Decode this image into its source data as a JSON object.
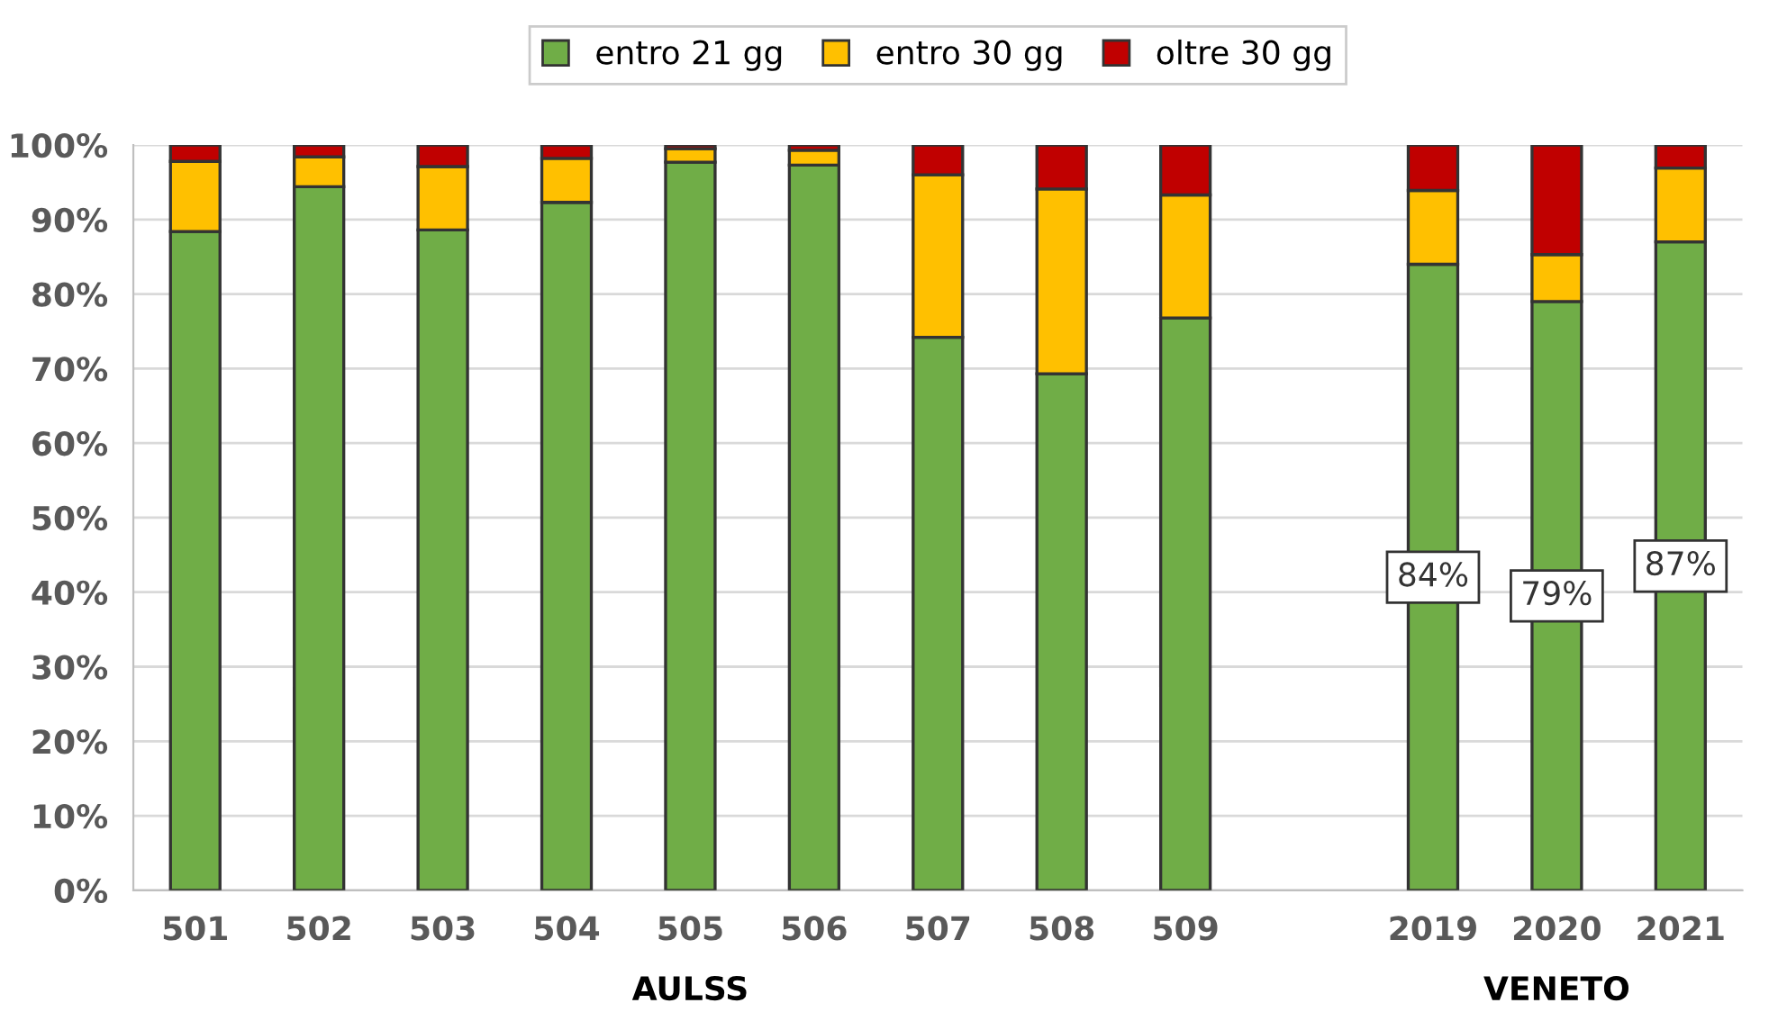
{
  "chart_data": {
    "type": "bar",
    "stacked": true,
    "categories": [
      "501",
      "502",
      "503",
      "504",
      "505",
      "506",
      "507",
      "508",
      "509",
      null,
      "2019",
      "2020",
      "2021"
    ],
    "series": [
      {
        "name": "entro 21 gg",
        "color": "#70ad47",
        "values": [
          88.4,
          94.4,
          88.6,
          92.3,
          97.7,
          97.3,
          74.2,
          69.3,
          76.8,
          null,
          84,
          79,
          87
        ],
        "value_labels": [
          null,
          null,
          null,
          null,
          null,
          null,
          null,
          null,
          null,
          null,
          "84%",
          "79%",
          "87%"
        ]
      },
      {
        "name": "entro 30 gg",
        "color": "#ffc000",
        "values": [
          9.4,
          4.0,
          8.5,
          5.9,
          1.8,
          2.0,
          21.8,
          24.8,
          16.5,
          null,
          9.9,
          6.3,
          9.9
        ]
      },
      {
        "name": "oltre 30 gg",
        "color": "#c00000",
        "values": [
          2.2,
          1.6,
          2.9,
          1.8,
          0.5,
          0.7,
          4.0,
          5.9,
          6.7,
          null,
          6.1,
          14.7,
          3.1
        ]
      }
    ],
    "ylim": [
      0,
      100
    ],
    "yticks": [
      {
        "value": 0,
        "label": "0%"
      },
      {
        "value": 10,
        "label": "10%"
      },
      {
        "value": 20,
        "label": "20%"
      },
      {
        "value": 30,
        "label": "30%"
      },
      {
        "value": 40,
        "label": "40%"
      },
      {
        "value": 50,
        "label": "50%"
      },
      {
        "value": 60,
        "label": "60%"
      },
      {
        "value": 70,
        "label": "70%"
      },
      {
        "value": 80,
        "label": "80%"
      },
      {
        "value": 90,
        "label": "90%"
      },
      {
        "value": 100,
        "label": "100%"
      }
    ],
    "grid": "y",
    "legend": "top",
    "annotations": [
      "AULSS",
      "VENETO"
    ]
  }
}
